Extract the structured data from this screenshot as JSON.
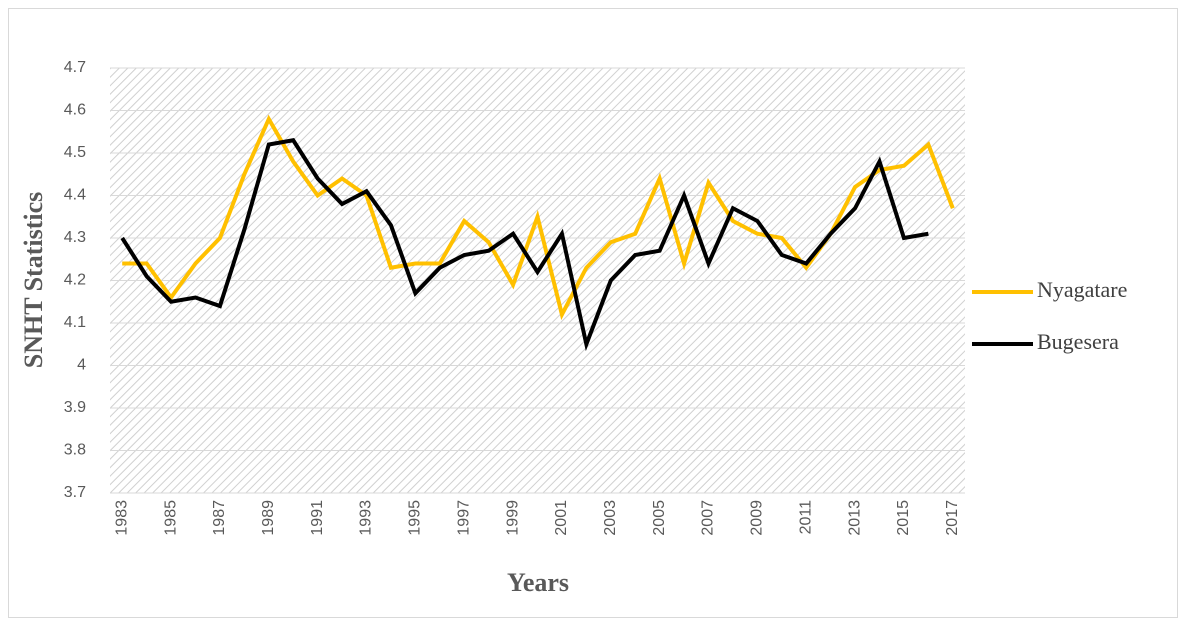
{
  "chart_data": {
    "type": "line",
    "x_label": "Years",
    "y_label": "SNHT Statistics",
    "categories": [
      "1983",
      null,
      "1985",
      null,
      "1987",
      null,
      "1989",
      null,
      "1991",
      null,
      "1993",
      null,
      "1995",
      null,
      "1997",
      null,
      "1999",
      null,
      "2001",
      null,
      "2003",
      null,
      "2005",
      null,
      "2007",
      null,
      "2009",
      null,
      "2011",
      null,
      "2013",
      null,
      "2015",
      null,
      "2017"
    ],
    "series": [
      {
        "name": "Nyagatare",
        "color": "#ffc000",
        "values": [
          4.24,
          4.24,
          4.16,
          4.24,
          4.3,
          4.45,
          4.58,
          4.48,
          4.4,
          4.44,
          4.4,
          4.23,
          4.24,
          4.24,
          4.34,
          4.29,
          4.19,
          4.35,
          4.12,
          4.23,
          4.29,
          4.31,
          4.44,
          4.24,
          4.43,
          4.34,
          4.31,
          4.3,
          4.23,
          4.31,
          4.42,
          4.46,
          4.47,
          4.52,
          4.37
        ]
      },
      {
        "name": "Bugesera",
        "color": "#000000",
        "values": [
          4.3,
          4.21,
          4.15,
          4.16,
          4.14,
          4.32,
          4.52,
          4.53,
          4.44,
          4.38,
          4.41,
          4.33,
          4.17,
          4.23,
          4.26,
          4.27,
          4.31,
          4.22,
          4.31,
          4.05,
          4.2,
          4.26,
          4.27,
          4.4,
          4.24,
          4.37,
          4.34,
          4.26,
          4.24,
          4.31,
          4.37,
          4.48,
          4.3,
          4.31,
          null
        ]
      }
    ],
    "ylim": [
      3.7,
      4.7
    ],
    "yticks": [
      3.7,
      3.8,
      3.9,
      4,
      4.1,
      4.2,
      4.3,
      4.4,
      4.5,
      4.6,
      4.7
    ],
    "grid": true,
    "legend": "right"
  }
}
